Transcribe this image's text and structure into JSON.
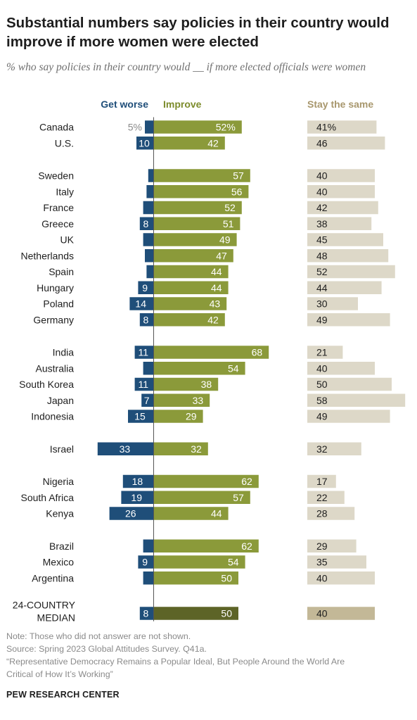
{
  "title": "Substantial numbers say policies in their country would improve if more women were elected",
  "subtitle": "% who say policies in their country would __ if more elected officials were women",
  "colors": {
    "worse": "#1f4e79",
    "improve": "#8b9a3a",
    "same": "#ddd8c8",
    "median_improve": "#5d6427",
    "median_same": "#c3b897",
    "axis": "#555555",
    "header_worse": "#1f4e79",
    "header_improve": "#7d8c2c",
    "header_same": "#a8976d"
  },
  "chart_data": {
    "type": "bar",
    "headers": {
      "worse": "Get worse",
      "improve": "Improve",
      "same": "Stay the same"
    },
    "groups": [
      {
        "rows": [
          {
            "label": [
              "Canada"
            ],
            "worse": 5,
            "improve": 52,
            "same": 41,
            "worse_label": "5%",
            "improve_label": "52%",
            "same_label": "41%"
          },
          {
            "label": [
              "U.S."
            ],
            "worse": 10,
            "improve": 42,
            "same": 46,
            "worse_label": "10",
            "improve_label": "42",
            "same_label": "46"
          }
        ]
      },
      {
        "rows": [
          {
            "label": [
              "Sweden"
            ],
            "worse": 3,
            "improve": 57,
            "same": 40,
            "worse_label": "",
            "improve_label": "57",
            "same_label": "40"
          },
          {
            "label": [
              "Italy"
            ],
            "worse": 4,
            "improve": 56,
            "same": 40,
            "worse_label": "",
            "improve_label": "56",
            "same_label": "40"
          },
          {
            "label": [
              "France"
            ],
            "worse": 6,
            "improve": 52,
            "same": 42,
            "worse_label": "",
            "improve_label": "52",
            "same_label": "42"
          },
          {
            "label": [
              "Greece"
            ],
            "worse": 8,
            "improve": 51,
            "same": 38,
            "worse_label": "8",
            "improve_label": "51",
            "same_label": "38"
          },
          {
            "label": [
              "UK"
            ],
            "worse": 6,
            "improve": 49,
            "same": 45,
            "worse_label": "",
            "improve_label": "49",
            "same_label": "45"
          },
          {
            "label": [
              "Netherlands"
            ],
            "worse": 5,
            "improve": 47,
            "same": 48,
            "worse_label": "",
            "improve_label": "47",
            "same_label": "48"
          },
          {
            "label": [
              "Spain"
            ],
            "worse": 4,
            "improve": 44,
            "same": 52,
            "worse_label": "",
            "improve_label": "44",
            "same_label": "52"
          },
          {
            "label": [
              "Hungary"
            ],
            "worse": 9,
            "improve": 44,
            "same": 44,
            "worse_label": "9",
            "improve_label": "44",
            "same_label": "44"
          },
          {
            "label": [
              "Poland"
            ],
            "worse": 14,
            "improve": 43,
            "same": 30,
            "worse_label": "14",
            "improve_label": "43",
            "same_label": "30"
          },
          {
            "label": [
              "Germany"
            ],
            "worse": 8,
            "improve": 42,
            "same": 49,
            "worse_label": "8",
            "improve_label": "42",
            "same_label": "49"
          }
        ]
      },
      {
        "rows": [
          {
            "label": [
              "India"
            ],
            "worse": 11,
            "improve": 68,
            "same": 21,
            "worse_label": "11",
            "improve_label": "68",
            "same_label": "21"
          },
          {
            "label": [
              "Australia"
            ],
            "worse": 6,
            "improve": 54,
            "same": 40,
            "worse_label": "",
            "improve_label": "54",
            "same_label": "40"
          },
          {
            "label": [
              "South Korea"
            ],
            "worse": 11,
            "improve": 38,
            "same": 50,
            "worse_label": "11",
            "improve_label": "38",
            "same_label": "50"
          },
          {
            "label": [
              "Japan"
            ],
            "worse": 7,
            "improve": 33,
            "same": 58,
            "worse_label": "7",
            "improve_label": "33",
            "same_label": "58"
          },
          {
            "label": [
              "Indonesia"
            ],
            "worse": 15,
            "improve": 29,
            "same": 49,
            "worse_label": "15",
            "improve_label": "29",
            "same_label": "49"
          }
        ]
      },
      {
        "rows": [
          {
            "label": [
              "Israel"
            ],
            "worse": 33,
            "improve": 32,
            "same": 32,
            "worse_label": "33",
            "improve_label": "32",
            "same_label": "32"
          }
        ]
      },
      {
        "rows": [
          {
            "label": [
              "Nigeria"
            ],
            "worse": 18,
            "improve": 62,
            "same": 17,
            "worse_label": "18",
            "improve_label": "62",
            "same_label": "17"
          },
          {
            "label": [
              "South Africa"
            ],
            "worse": 19,
            "improve": 57,
            "same": 22,
            "worse_label": "19",
            "improve_label": "57",
            "same_label": "22"
          },
          {
            "label": [
              "Kenya"
            ],
            "worse": 26,
            "improve": 44,
            "same": 28,
            "worse_label": "26",
            "improve_label": "44",
            "same_label": "28"
          }
        ]
      },
      {
        "rows": [
          {
            "label": [
              "Brazil"
            ],
            "worse": 6,
            "improve": 62,
            "same": 29,
            "worse_label": "",
            "improve_label": "62",
            "same_label": "29"
          },
          {
            "label": [
              "Mexico"
            ],
            "worse": 9,
            "improve": 54,
            "same": 35,
            "worse_label": "9",
            "improve_label": "54",
            "same_label": "35"
          },
          {
            "label": [
              "Argentina"
            ],
            "worse": 6,
            "improve": 50,
            "same": 40,
            "worse_label": "",
            "improve_label": "50",
            "same_label": "40"
          }
        ]
      },
      {
        "rows": [
          {
            "label": [
              "24-COUNTRY",
              "MEDIAN"
            ],
            "median": true,
            "worse": 8,
            "improve": 50,
            "same": 40,
            "worse_label": "8",
            "improve_label": "50",
            "same_label": "40"
          }
        ]
      }
    ]
  },
  "footer": {
    "note": "Note: Those who did not answer are not shown.",
    "source": "Source: Spring 2023 Global Attitudes Survey. Q41a.",
    "report_line1": "“Representative Democracy Remains a Popular Ideal, But People Around the World Are",
    "report_line2": "Critical of How It’s Working”"
  },
  "brand": "PEW RESEARCH CENTER"
}
